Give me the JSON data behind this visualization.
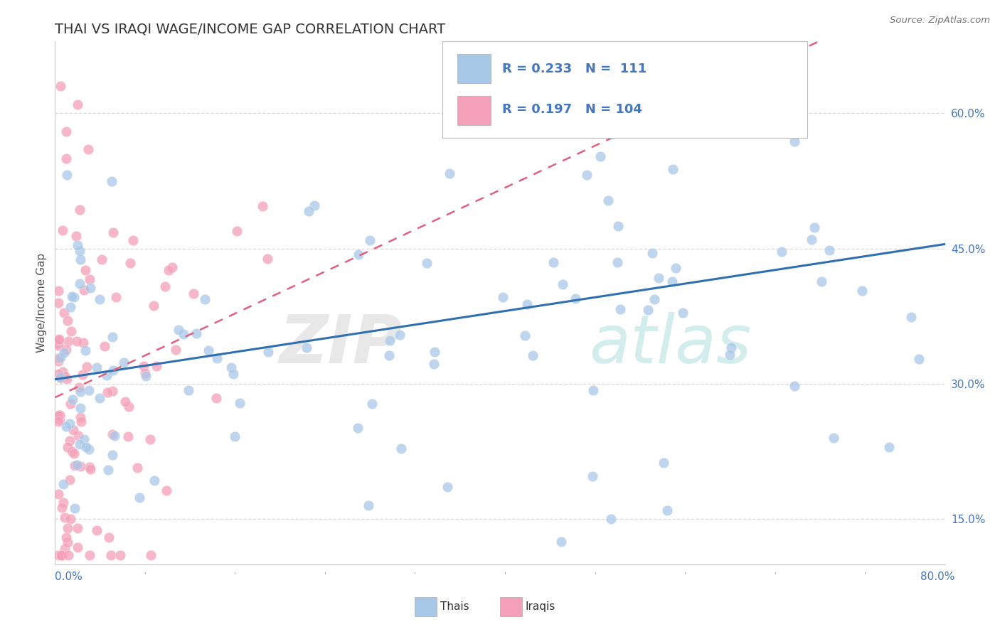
{
  "title": "THAI VS IRAQI WAGE/INCOME GAP CORRELATION CHART",
  "source": "Source: ZipAtlas.com",
  "ylabel": "Wage/Income Gap",
  "xlim": [
    0.0,
    0.8
  ],
  "ylim": [
    0.1,
    0.68
  ],
  "yticks": [
    0.15,
    0.3,
    0.45,
    0.6
  ],
  "ytick_labels": [
    "15.0%",
    "30.0%",
    "45.0%",
    "60.0%"
  ],
  "blue_color": "#a8c8e8",
  "pink_color": "#f4a0b8",
  "blue_line_color": "#3070b0",
  "pink_line_color": "#e06080",
  "legend_blue_R": "0.233",
  "legend_blue_N": "111",
  "legend_pink_R": "0.197",
  "legend_pink_N": "104",
  "grid_color": "#d8d8d8",
  "spine_color": "#cccccc",
  "axis_label_color": "#4477bb",
  "title_color": "#333333"
}
